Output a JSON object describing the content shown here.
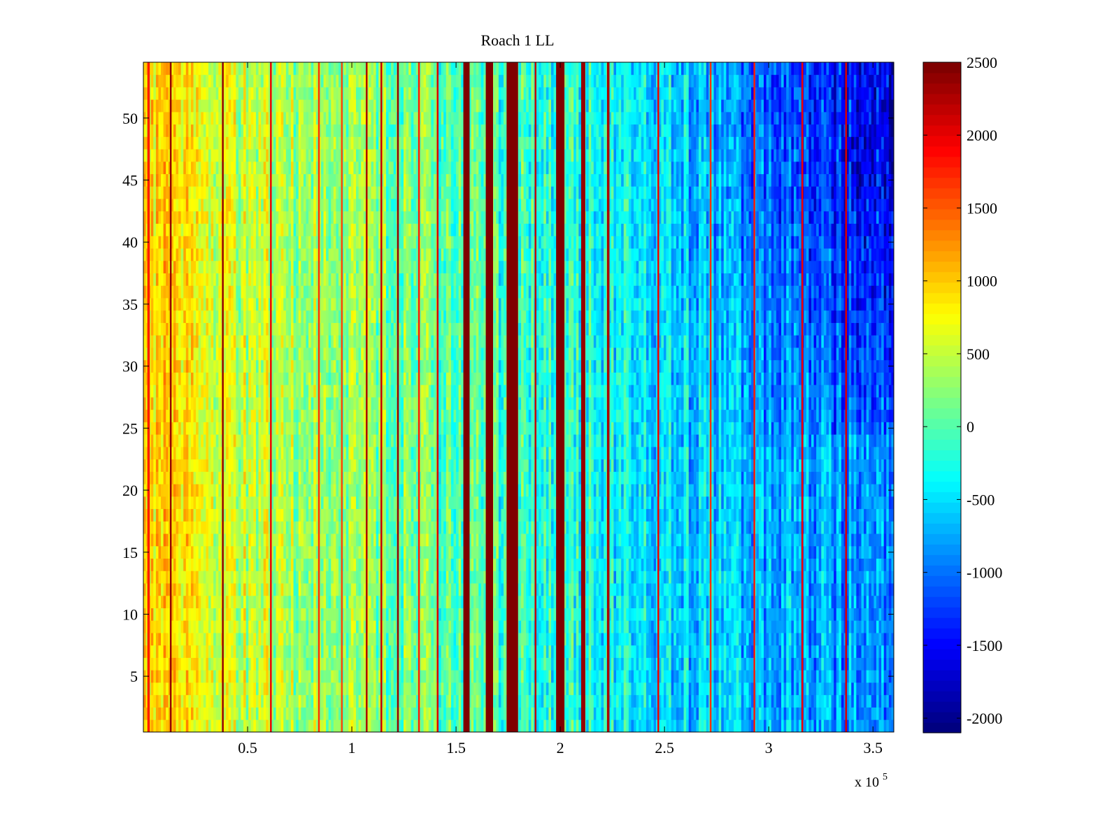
{
  "chart_data": {
    "type": "heatmap",
    "title": "Roach 1 LL",
    "xlabel": "",
    "ylabel": "",
    "x_multiplier_label": "x 10",
    "x_multiplier_exponent": "5",
    "xlim": [
      0,
      3.6
    ],
    "ylim": [
      0.5,
      54.5
    ],
    "x_ticks": [
      0.5,
      1,
      1.5,
      2,
      2.5,
      3,
      3.5
    ],
    "x_tick_labels": [
      "0.5",
      "1",
      "1.5",
      "2",
      "2.5",
      "3",
      "3.5"
    ],
    "y_ticks": [
      5,
      10,
      15,
      20,
      25,
      30,
      35,
      40,
      45,
      50
    ],
    "y_tick_labels": [
      "5",
      "10",
      "15",
      "20",
      "25",
      "30",
      "35",
      "40",
      "45",
      "50"
    ],
    "rows": 54,
    "colormap": "jet",
    "clim": [
      -2100,
      2500
    ],
    "colorbar_ticks": [
      2500,
      2000,
      1500,
      1000,
      500,
      0,
      -500,
      -1000,
      -1500,
      -2000
    ],
    "colorbar_tick_labels": [
      "2500",
      "2000",
      "1500",
      "1000",
      "500",
      "0",
      "-500",
      "-1000",
      "-1500",
      "-2000"
    ],
    "baseline_profile": [
      {
        "x": 0.0,
        "value": 950
      },
      {
        "x": 0.3,
        "value": 650
      },
      {
        "x": 0.8,
        "value": 350
      },
      {
        "x": 1.2,
        "value": 150
      },
      {
        "x": 1.6,
        "value": -50
      },
      {
        "x": 2.2,
        "value": -300
      },
      {
        "x": 2.6,
        "value": -550
      },
      {
        "x": 3.0,
        "value": -750
      },
      {
        "x": 3.6,
        "value": -900
      }
    ],
    "upper_right_cold_region": {
      "x_from": 2.5,
      "row_from": 25,
      "extra_min": -1000
    },
    "hot_bands": [
      {
        "x": 0.025,
        "width": 0.012,
        "value": 1800
      },
      {
        "x": 0.13,
        "width": 0.006,
        "value": 2400
      },
      {
        "x": 0.38,
        "width": 0.006,
        "value": 2400
      },
      {
        "x": 0.61,
        "width": 0.005,
        "value": 2000
      },
      {
        "x": 0.84,
        "width": 0.004,
        "value": 1700
      },
      {
        "x": 0.95,
        "width": 0.004,
        "value": 1600
      },
      {
        "x": 1.07,
        "width": 0.006,
        "value": 2300
      },
      {
        "x": 1.14,
        "width": 0.005,
        "value": 2200
      },
      {
        "x": 1.22,
        "width": 0.006,
        "value": 2400
      },
      {
        "x": 1.32,
        "width": 0.004,
        "value": 1800
      },
      {
        "x": 1.41,
        "width": 0.005,
        "value": 2100
      },
      {
        "x": 1.55,
        "width": 0.03,
        "value": 2500
      },
      {
        "x": 1.66,
        "width": 0.035,
        "value": 2500
      },
      {
        "x": 1.77,
        "width": 0.055,
        "value": 2500
      },
      {
        "x": 1.88,
        "width": 0.006,
        "value": 2200
      },
      {
        "x": 2.0,
        "width": 0.04,
        "value": 2500
      },
      {
        "x": 2.11,
        "width": 0.02,
        "value": 2400
      },
      {
        "x": 2.23,
        "width": 0.012,
        "value": 2300
      },
      {
        "x": 2.47,
        "width": 0.008,
        "value": 2000
      },
      {
        "x": 2.72,
        "width": 0.006,
        "value": 1700
      },
      {
        "x": 2.93,
        "width": 0.006,
        "value": 1800
      },
      {
        "x": 3.16,
        "width": 0.006,
        "value": 2000
      },
      {
        "x": 3.37,
        "width": 0.006,
        "value": 2100
      }
    ]
  }
}
